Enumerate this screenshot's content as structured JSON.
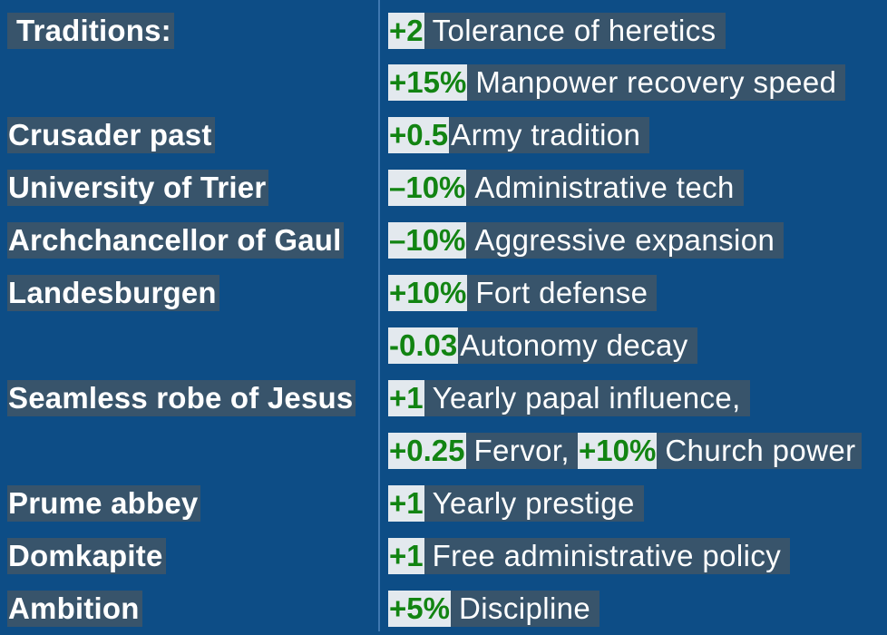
{
  "left": {
    "traditions": "Traditions:",
    "crusader_past": "Crusader past",
    "university_trier": "University of Trier",
    "archchancellor": "Archchancellor of Gaul",
    "landesburgen": "Landesburgen",
    "seamless_robe": "Seamless robe of Jesus",
    "prume_abbey": "Prume abbey",
    "domkapite": "Domkapite",
    "ambition": "Ambition"
  },
  "right": [
    {
      "value": "+2",
      "text": "Tolerance of heretics"
    },
    {
      "value": "+15%",
      "text": "Manpower recovery speed"
    },
    {
      "value": "+0.5",
      "text": "Army tradition"
    },
    {
      "value": "–10%",
      "text": "Administrative tech"
    },
    {
      "value": "–10%",
      "text": "Aggressive expansion"
    },
    {
      "value": "+10%",
      "text": "Fort defense"
    },
    {
      "value": "-0.03",
      "text": "Autonomy decay"
    },
    {
      "value": "+1",
      "text": "Yearly papal influence,"
    },
    {
      "value": "+0.25",
      "text": "Fervor,",
      "value2": "+10%",
      "text2": "Church power"
    },
    {
      "value": "+1",
      "text": "Yearly prestige"
    },
    {
      "value": "+1",
      "text": "Free administrative policy"
    },
    {
      "value": "+5%",
      "text": "Discipline"
    }
  ]
}
